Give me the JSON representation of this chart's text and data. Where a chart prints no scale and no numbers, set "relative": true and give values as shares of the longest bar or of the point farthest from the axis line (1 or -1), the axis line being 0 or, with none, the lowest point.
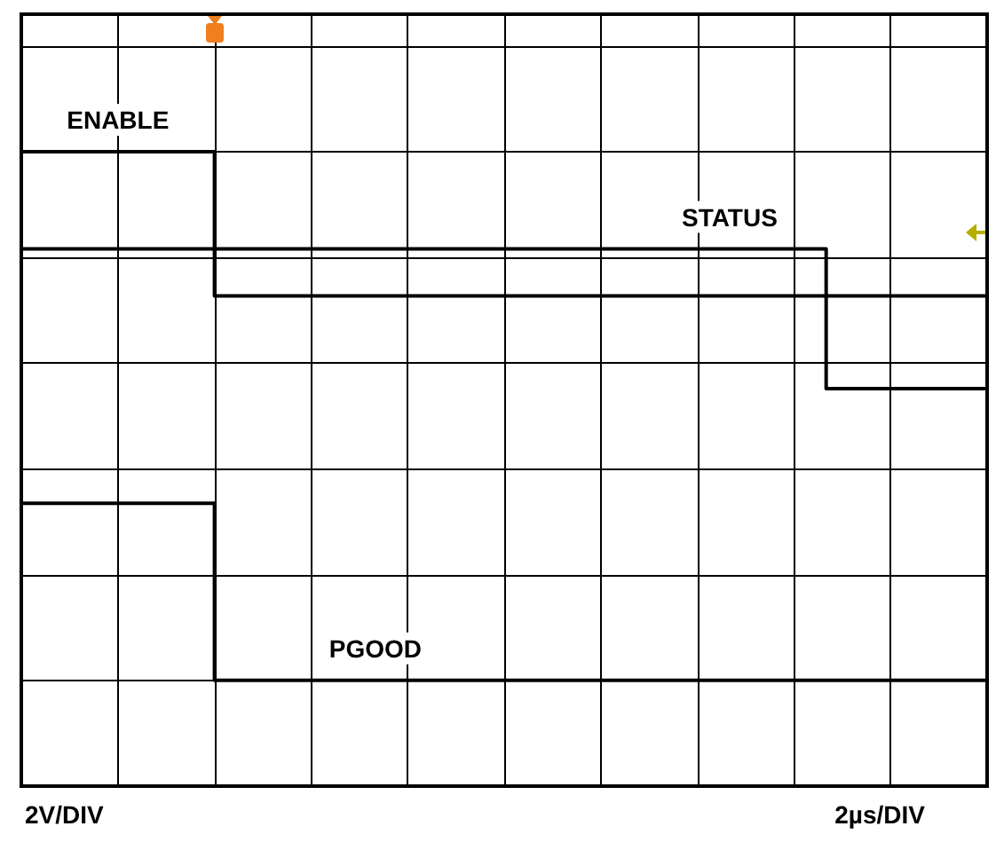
{
  "chart_data": {
    "type": "step",
    "relative": true,
    "grid": true,
    "legend": false,
    "marker": "none",
    "line_style": "solid",
    "categories": [
      null,
      null,
      null,
      null,
      null,
      null,
      null,
      null,
      null,
      null,
      null,
      null,
      null,
      null,
      null,
      null,
      null,
      null,
      null,
      null,
      null,
      null,
      null,
      null,
      null,
      null,
      null,
      null,
      null,
      null,
      null,
      null,
      null,
      null,
      null,
      null,
      null,
      null,
      null,
      null,
      null,
      null,
      null,
      null,
      null,
      null,
      null,
      null,
      null,
      null,
      null,
      null,
      null,
      null,
      null,
      null,
      null,
      null,
      null,
      null,
      null
    ],
    "series": [
      {
        "name": "ENABLE",
        "color": "#000000",
        "values": [
          1,
          1,
          1,
          1,
          1,
          1,
          1,
          1,
          1,
          1,
          1,
          1,
          0.727,
          0.727,
          0.727,
          0.727,
          0.727,
          0.727,
          0.727,
          0.727,
          0.727,
          0.727,
          0.727,
          0.727,
          0.727,
          0.727,
          0.727,
          0.727,
          0.727,
          0.727,
          0.727,
          0.727,
          0.727,
          0.727,
          0.727,
          0.727,
          0.727,
          0.727,
          0.727,
          0.727,
          0.727,
          0.727,
          0.727,
          0.727,
          0.727,
          0.727,
          0.727,
          0.727,
          0.727,
          0.727,
          0.727,
          0.727,
          0.727,
          0.727,
          0.727,
          0.727,
          0.727,
          0.727,
          0.727,
          0.727,
          0.727
        ]
      },
      {
        "name": "STATUS",
        "color": "#000000",
        "values": [
          0.816,
          0.816,
          0.816,
          0.816,
          0.816,
          0.816,
          0.816,
          0.816,
          0.816,
          0.816,
          0.816,
          0.816,
          0.816,
          0.816,
          0.816,
          0.816,
          0.816,
          0.816,
          0.816,
          0.816,
          0.816,
          0.816,
          0.816,
          0.816,
          0.816,
          0.816,
          0.816,
          0.816,
          0.816,
          0.816,
          0.816,
          0.816,
          0.816,
          0.816,
          0.816,
          0.816,
          0.816,
          0.816,
          0.816,
          0.816,
          0.816,
          0.816,
          0.816,
          0.816,
          0.816,
          0.816,
          0.816,
          0.816,
          0.816,
          0.816,
          0.552,
          0.552,
          0.552,
          0.552,
          0.552,
          0.552,
          0.552,
          0.552,
          0.552,
          0.552,
          0.552
        ]
      },
      {
        "name": "PGOOD",
        "color": "#000000",
        "values": [
          0.335,
          0.335,
          0.335,
          0.335,
          0.335,
          0.335,
          0.335,
          0.335,
          0.335,
          0.335,
          0.335,
          0.335,
          0,
          0,
          0,
          0,
          0,
          0,
          0,
          0,
          0,
          0,
          0,
          0,
          0,
          0,
          0,
          0,
          0,
          0,
          0,
          0,
          0,
          0,
          0,
          0,
          0,
          0,
          0,
          0,
          0,
          0,
          0,
          0,
          0,
          0,
          0,
          0,
          0,
          0,
          0,
          0,
          0,
          0,
          0,
          0,
          0,
          0,
          0,
          0,
          0
        ]
      }
    ],
    "annotations": [
      "2V/DIV",
      "2µs/DIV"
    ]
  }
}
